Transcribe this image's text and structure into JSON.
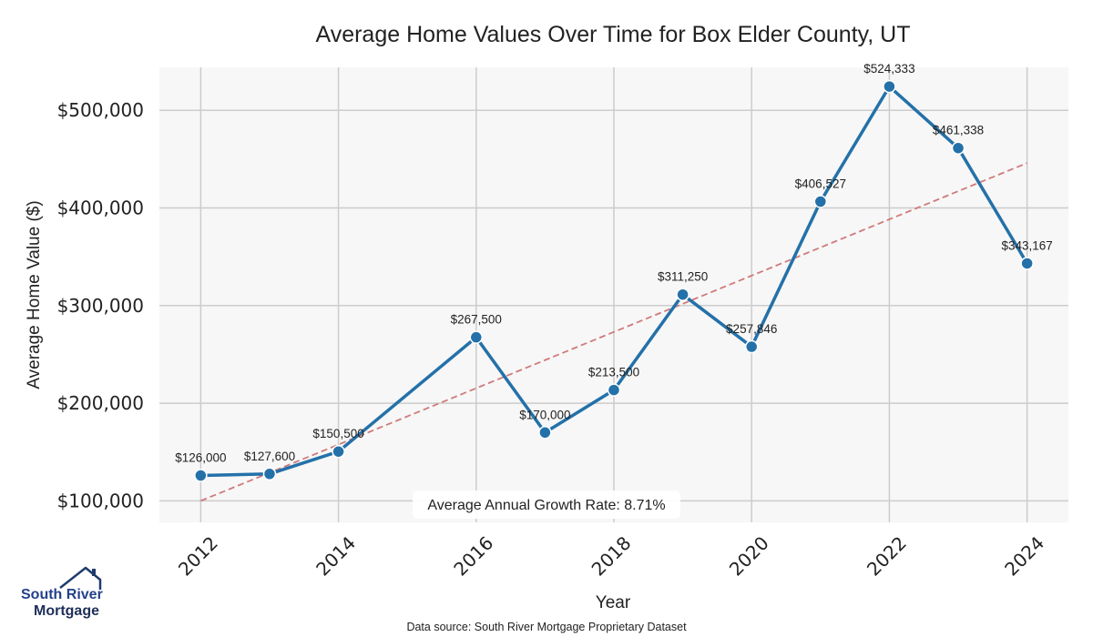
{
  "chart_data": {
    "type": "line",
    "title": "Average Home Values Over Time for Box Elder County, UT",
    "xlabel": "Year",
    "ylabel": "Average Home Value ($)",
    "x": [
      2012,
      2013,
      2014,
      2016,
      2017,
      2018,
      2019,
      2020,
      2021,
      2022,
      2023,
      2024
    ],
    "values": [
      126000,
      127600,
      150500,
      267500,
      170000,
      213500,
      311250,
      257846,
      406527,
      524333,
      461338,
      343167
    ],
    "data_labels": [
      "$126,000",
      "$127,600",
      "$150,500",
      "$267,500",
      "$170,000",
      "$213,500",
      "$311,250",
      "$257,846",
      "$406,527",
      "$524,333",
      "$461,338",
      "$343,167"
    ],
    "x_ticks": [
      "2012",
      "2014",
      "2016",
      "2018",
      "2020",
      "2022",
      "2024"
    ],
    "y_ticks": [
      100000,
      200000,
      300000,
      400000,
      500000
    ],
    "y_tick_labels": [
      "$100,000",
      "$200,000",
      "$300,000",
      "$400,000",
      "$500,000"
    ],
    "xlim": [
      2011.4,
      2024.6
    ],
    "ylim": [
      78000,
      544000
    ],
    "trendline": {
      "x": [
        2012,
        2024
      ],
      "y": [
        100000,
        446000
      ]
    },
    "grid": true,
    "annotation": "Average Annual Growth Rate: 8.71%",
    "line_color": "#2471a9",
    "trend_color": "#d07a7a"
  },
  "logo": {
    "line1": "South River",
    "line2": "Mortgage"
  },
  "source_note": "Data source: South River Mortgage Proprietary Dataset"
}
